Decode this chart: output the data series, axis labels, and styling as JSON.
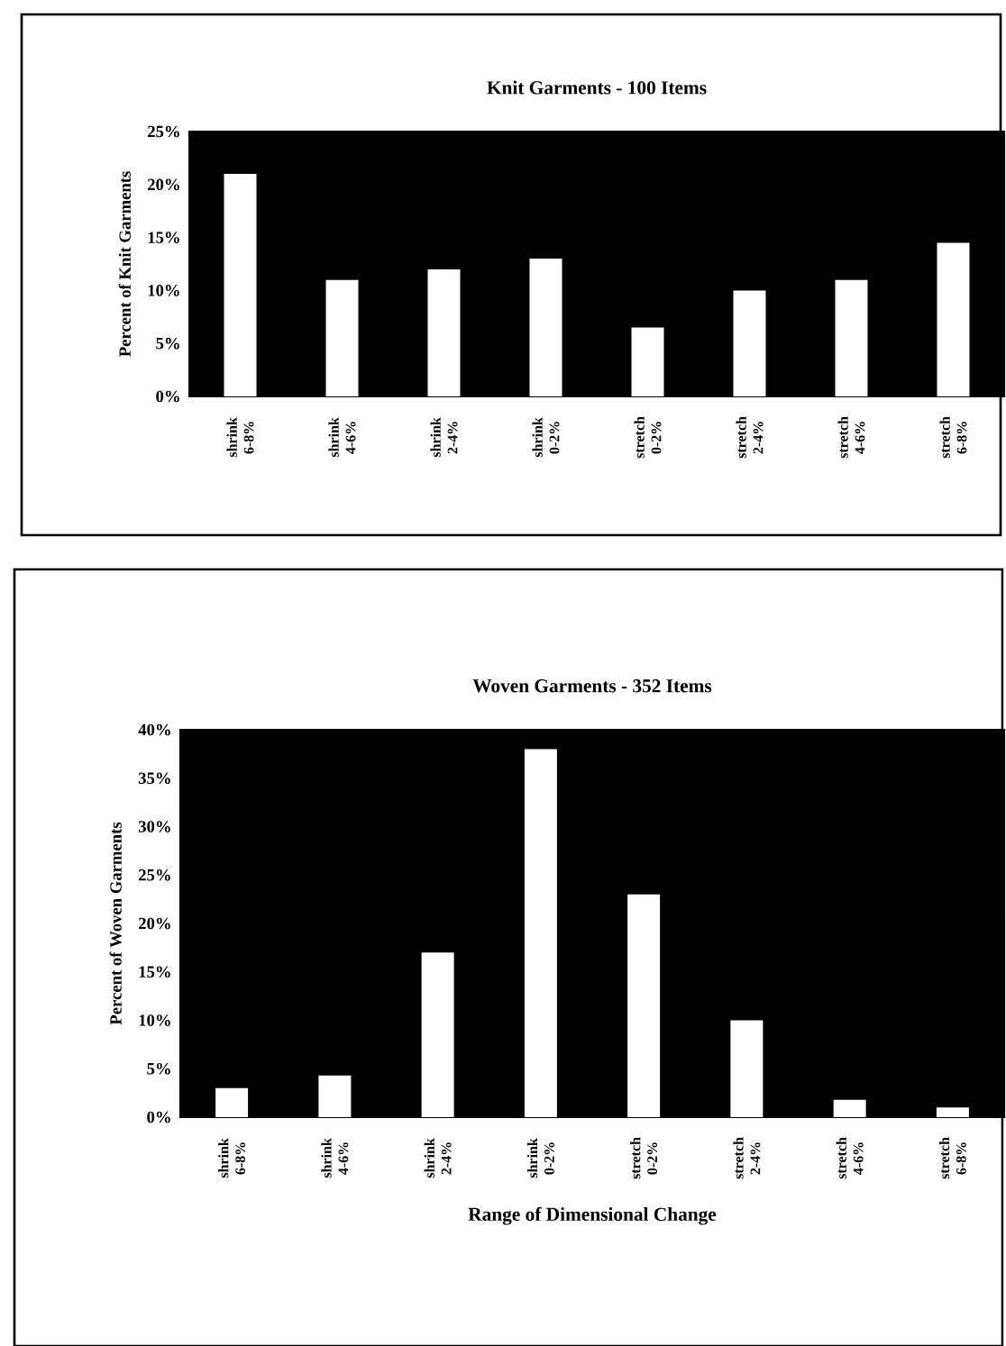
{
  "chart_data": [
    {
      "type": "bar",
      "title": "Knit Garments - 100 Items",
      "ylabel": "Percent of Knit Garments",
      "categories": [
        "shrink 6-8%",
        "shrink 4-6%",
        "shrink 2-4%",
        "shrink 0-2%",
        "stretch 0-2%",
        "stretch 2-4%",
        "stretch 4-6%",
        "stretch 6-8%"
      ],
      "values": [
        21,
        11,
        12,
        13,
        6.5,
        10,
        11,
        14.5
      ],
      "color": "#ffffff",
      "ylim": [
        0,
        25
      ],
      "yticks": [
        {
          "value": 0,
          "label": "0%"
        },
        {
          "value": 5,
          "label": "5%"
        },
        {
          "value": 10,
          "label": "10%"
        },
        {
          "value": 15,
          "label": "15%"
        },
        {
          "value": 20,
          "label": "20%"
        },
        {
          "value": 25,
          "label": "25%"
        }
      ]
    },
    {
      "type": "bar",
      "title": "Woven Garments - 352 Items",
      "ylabel": "Percent of Woven Garments",
      "xlabel": "Range of Dimensional Change",
      "categories": [
        "shrink 6-8%",
        "shrink 4-6%",
        "shrink 2-4%",
        "shrink 0-2%",
        "stretch 0-2%",
        "stretch 2-4%",
        "stretch 4-6%",
        "stretch 6-8%"
      ],
      "values": [
        3,
        4.3,
        17,
        38,
        23,
        10,
        1.8,
        1
      ],
      "color": "#ffffff",
      "ylim": [
        0,
        40
      ],
      "yticks": [
        {
          "value": 0,
          "label": "0%"
        },
        {
          "value": 5,
          "label": "5%"
        },
        {
          "value": 10,
          "label": "10%"
        },
        {
          "value": 15,
          "label": "15%"
        },
        {
          "value": 20,
          "label": "20%"
        },
        {
          "value": 25,
          "label": "25%"
        },
        {
          "value": 30,
          "label": "30%"
        },
        {
          "value": 35,
          "label": "35%"
        },
        {
          "value": 40,
          "label": "40%"
        }
      ]
    }
  ]
}
